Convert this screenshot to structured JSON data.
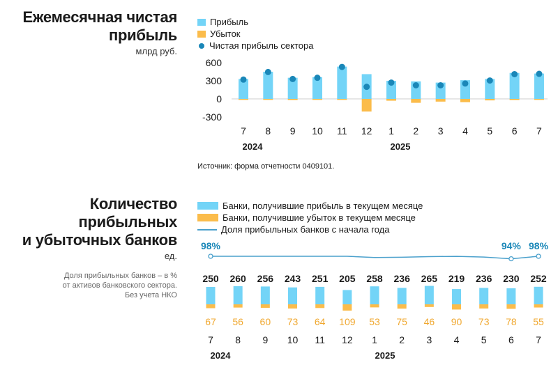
{
  "colors": {
    "profit": "#73d4f7",
    "loss": "#fbbc4b",
    "net_dot": "#1a87b8",
    "share_line": "#4aa0cc",
    "axis": "#cccccc",
    "text": "#1a1a1a",
    "loss_label": "#f0a830"
  },
  "top": {
    "title_line1": "Ежемесячная чистая",
    "title_line2": "прибыль",
    "unit": "млрд руб.",
    "legend": {
      "profit": "Прибыль",
      "loss": "Убыток",
      "net": "Чистая прибыль сектора"
    },
    "source": "Источник: форма отчетности 0409101."
  },
  "bottom": {
    "title_line1": "Количество",
    "title_line2": "прибыльных",
    "title_line3": "и убыточных банков",
    "unit": "ед.",
    "note_line1": "Доля прибыльных банков – в %",
    "note_line2": "от активов банковского сектора.",
    "note_line3": "Без учета НКО",
    "legend": {
      "profit": "Банки, получившие прибыль в текущем месяце",
      "loss": "Банки, получившие убыток в текущем месяце",
      "share": "Доля прибыльных банков с начала года"
    }
  },
  "chart_data": [
    {
      "type": "bar",
      "categories": [
        "7",
        "8",
        "9",
        "10",
        "11",
        "12",
        "1",
        "2",
        "3",
        "4",
        "5",
        "6",
        "7"
      ],
      "year_labels": [
        "2024",
        "2025"
      ],
      "series": [
        {
          "name": "Прибыль",
          "values": [
            330,
            450,
            350,
            360,
            535,
            410,
            300,
            290,
            270,
            310,
            330,
            430,
            420
          ]
        },
        {
          "name": "Убыток",
          "values": [
            -10,
            -5,
            -20,
            -10,
            -5,
            -210,
            -30,
            -65,
            -45,
            -55,
            -25,
            -20,
            -5
          ]
        },
        {
          "name": "Чистая прибыль сектора",
          "values": [
            320,
            445,
            330,
            350,
            530,
            200,
            270,
            225,
            225,
            255,
            305,
            410,
            415
          ]
        }
      ],
      "ylim": [
        -300,
        600
      ],
      "yticks": [
        "600",
        "300",
        "0",
        "-300"
      ],
      "ytick_values": [
        600,
        300,
        0,
        -300
      ]
    },
    {
      "type": "bar",
      "categories": [
        "7",
        "8",
        "9",
        "10",
        "11",
        "12",
        "1",
        "2",
        "3",
        "4",
        "5",
        "6",
        "7"
      ],
      "year_labels": [
        "2024",
        "2025"
      ],
      "series": [
        {
          "name": "Банки, получившие прибыль в текущем месяце",
          "values": [
            250,
            260,
            256,
            243,
            251,
            205,
            258,
            236,
            265,
            219,
            236,
            230,
            252
          ]
        },
        {
          "name": "Банки, получившие убыток в текущем месяце",
          "values": [
            67,
            56,
            60,
            73,
            64,
            109,
            53,
            75,
            46,
            90,
            73,
            78,
            55
          ]
        },
        {
          "name": "Доля прибыльных банков с начала года",
          "values": [
            98,
            98,
            98,
            98,
            98,
            98,
            96,
            96.5,
            97.5,
            97.8,
            96.8,
            94,
            98
          ]
        }
      ],
      "share_labels": [
        "98%",
        "94%",
        "98%"
      ]
    }
  ]
}
